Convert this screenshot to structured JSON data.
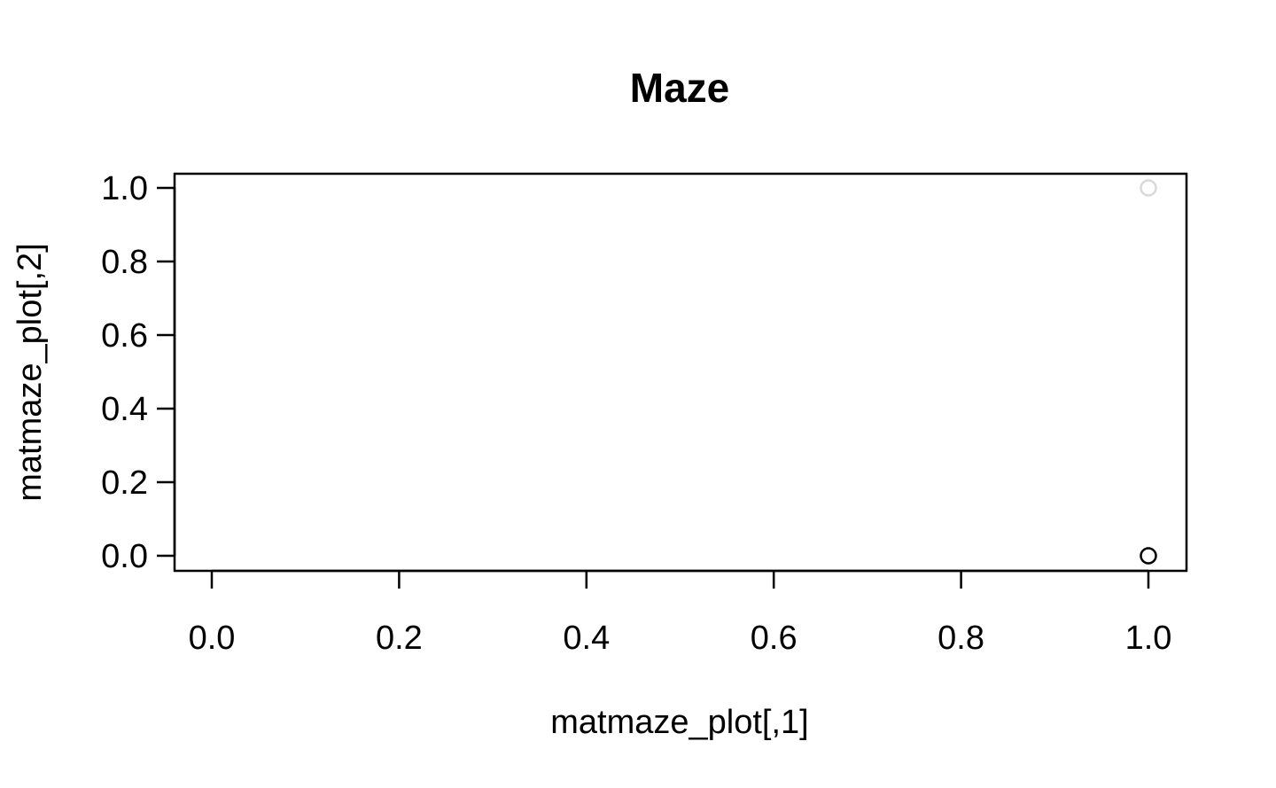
{
  "chart_data": {
    "type": "scatter",
    "title": "Maze",
    "xlabel": "matmaze_plot[,1]",
    "ylabel": "matmaze_plot[,2]",
    "xlim": [
      0.0,
      1.0
    ],
    "ylim": [
      0.0,
      1.0
    ],
    "x_ticks": [
      "0.0",
      "0.2",
      "0.4",
      "0.6",
      "0.8",
      "1.0"
    ],
    "y_ticks": [
      "0.0",
      "0.2",
      "0.4",
      "0.6",
      "0.8",
      "1.0"
    ],
    "grid": false,
    "legend": "none",
    "marker": "open-circle",
    "points": [
      {
        "x": 1.0,
        "y": 0.0,
        "color": "#000000"
      },
      {
        "x": 1.0,
        "y": 1.0,
        "color": "#d9d9d9"
      }
    ]
  }
}
